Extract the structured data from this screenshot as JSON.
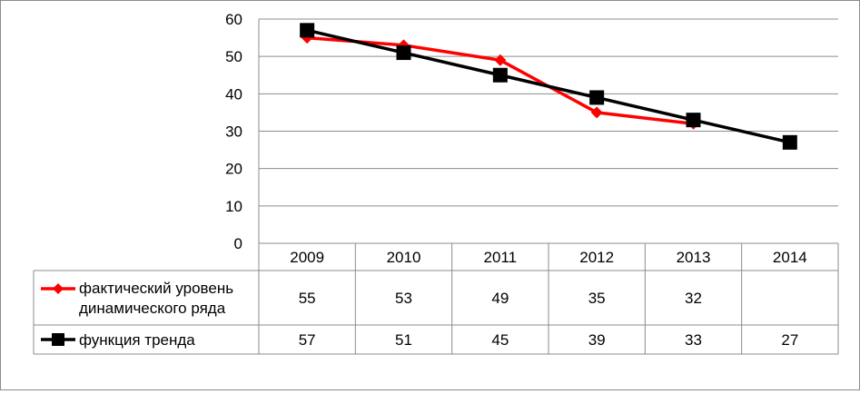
{
  "chart_data": {
    "type": "line",
    "title": "",
    "xlabel": "",
    "ylabel": "",
    "categories": [
      "2009",
      "2010",
      "2011",
      "2012",
      "2013",
      "2014"
    ],
    "ylim": [
      0,
      60
    ],
    "yticks": [
      0,
      10,
      20,
      30,
      40,
      50,
      60
    ],
    "grid": true,
    "legend_placement": "data-table-left",
    "series": [
      {
        "name": "фактический уровень динамического ряда",
        "name_lines": [
          "фактический уровень",
          "динамического ряда"
        ],
        "values": [
          55,
          53,
          49,
          35,
          32,
          null
        ],
        "display": [
          "55",
          "53",
          "49",
          "35",
          "32",
          ""
        ],
        "color": "#ff0000",
        "marker": "diamond"
      },
      {
        "name": "функция тренда",
        "name_lines": [
          "функция тренда"
        ],
        "values": [
          57,
          51,
          45,
          39,
          33,
          27
        ],
        "display": [
          "57",
          "51",
          "45",
          "39",
          "33",
          "27"
        ],
        "color": "#000000",
        "marker": "square"
      }
    ]
  }
}
